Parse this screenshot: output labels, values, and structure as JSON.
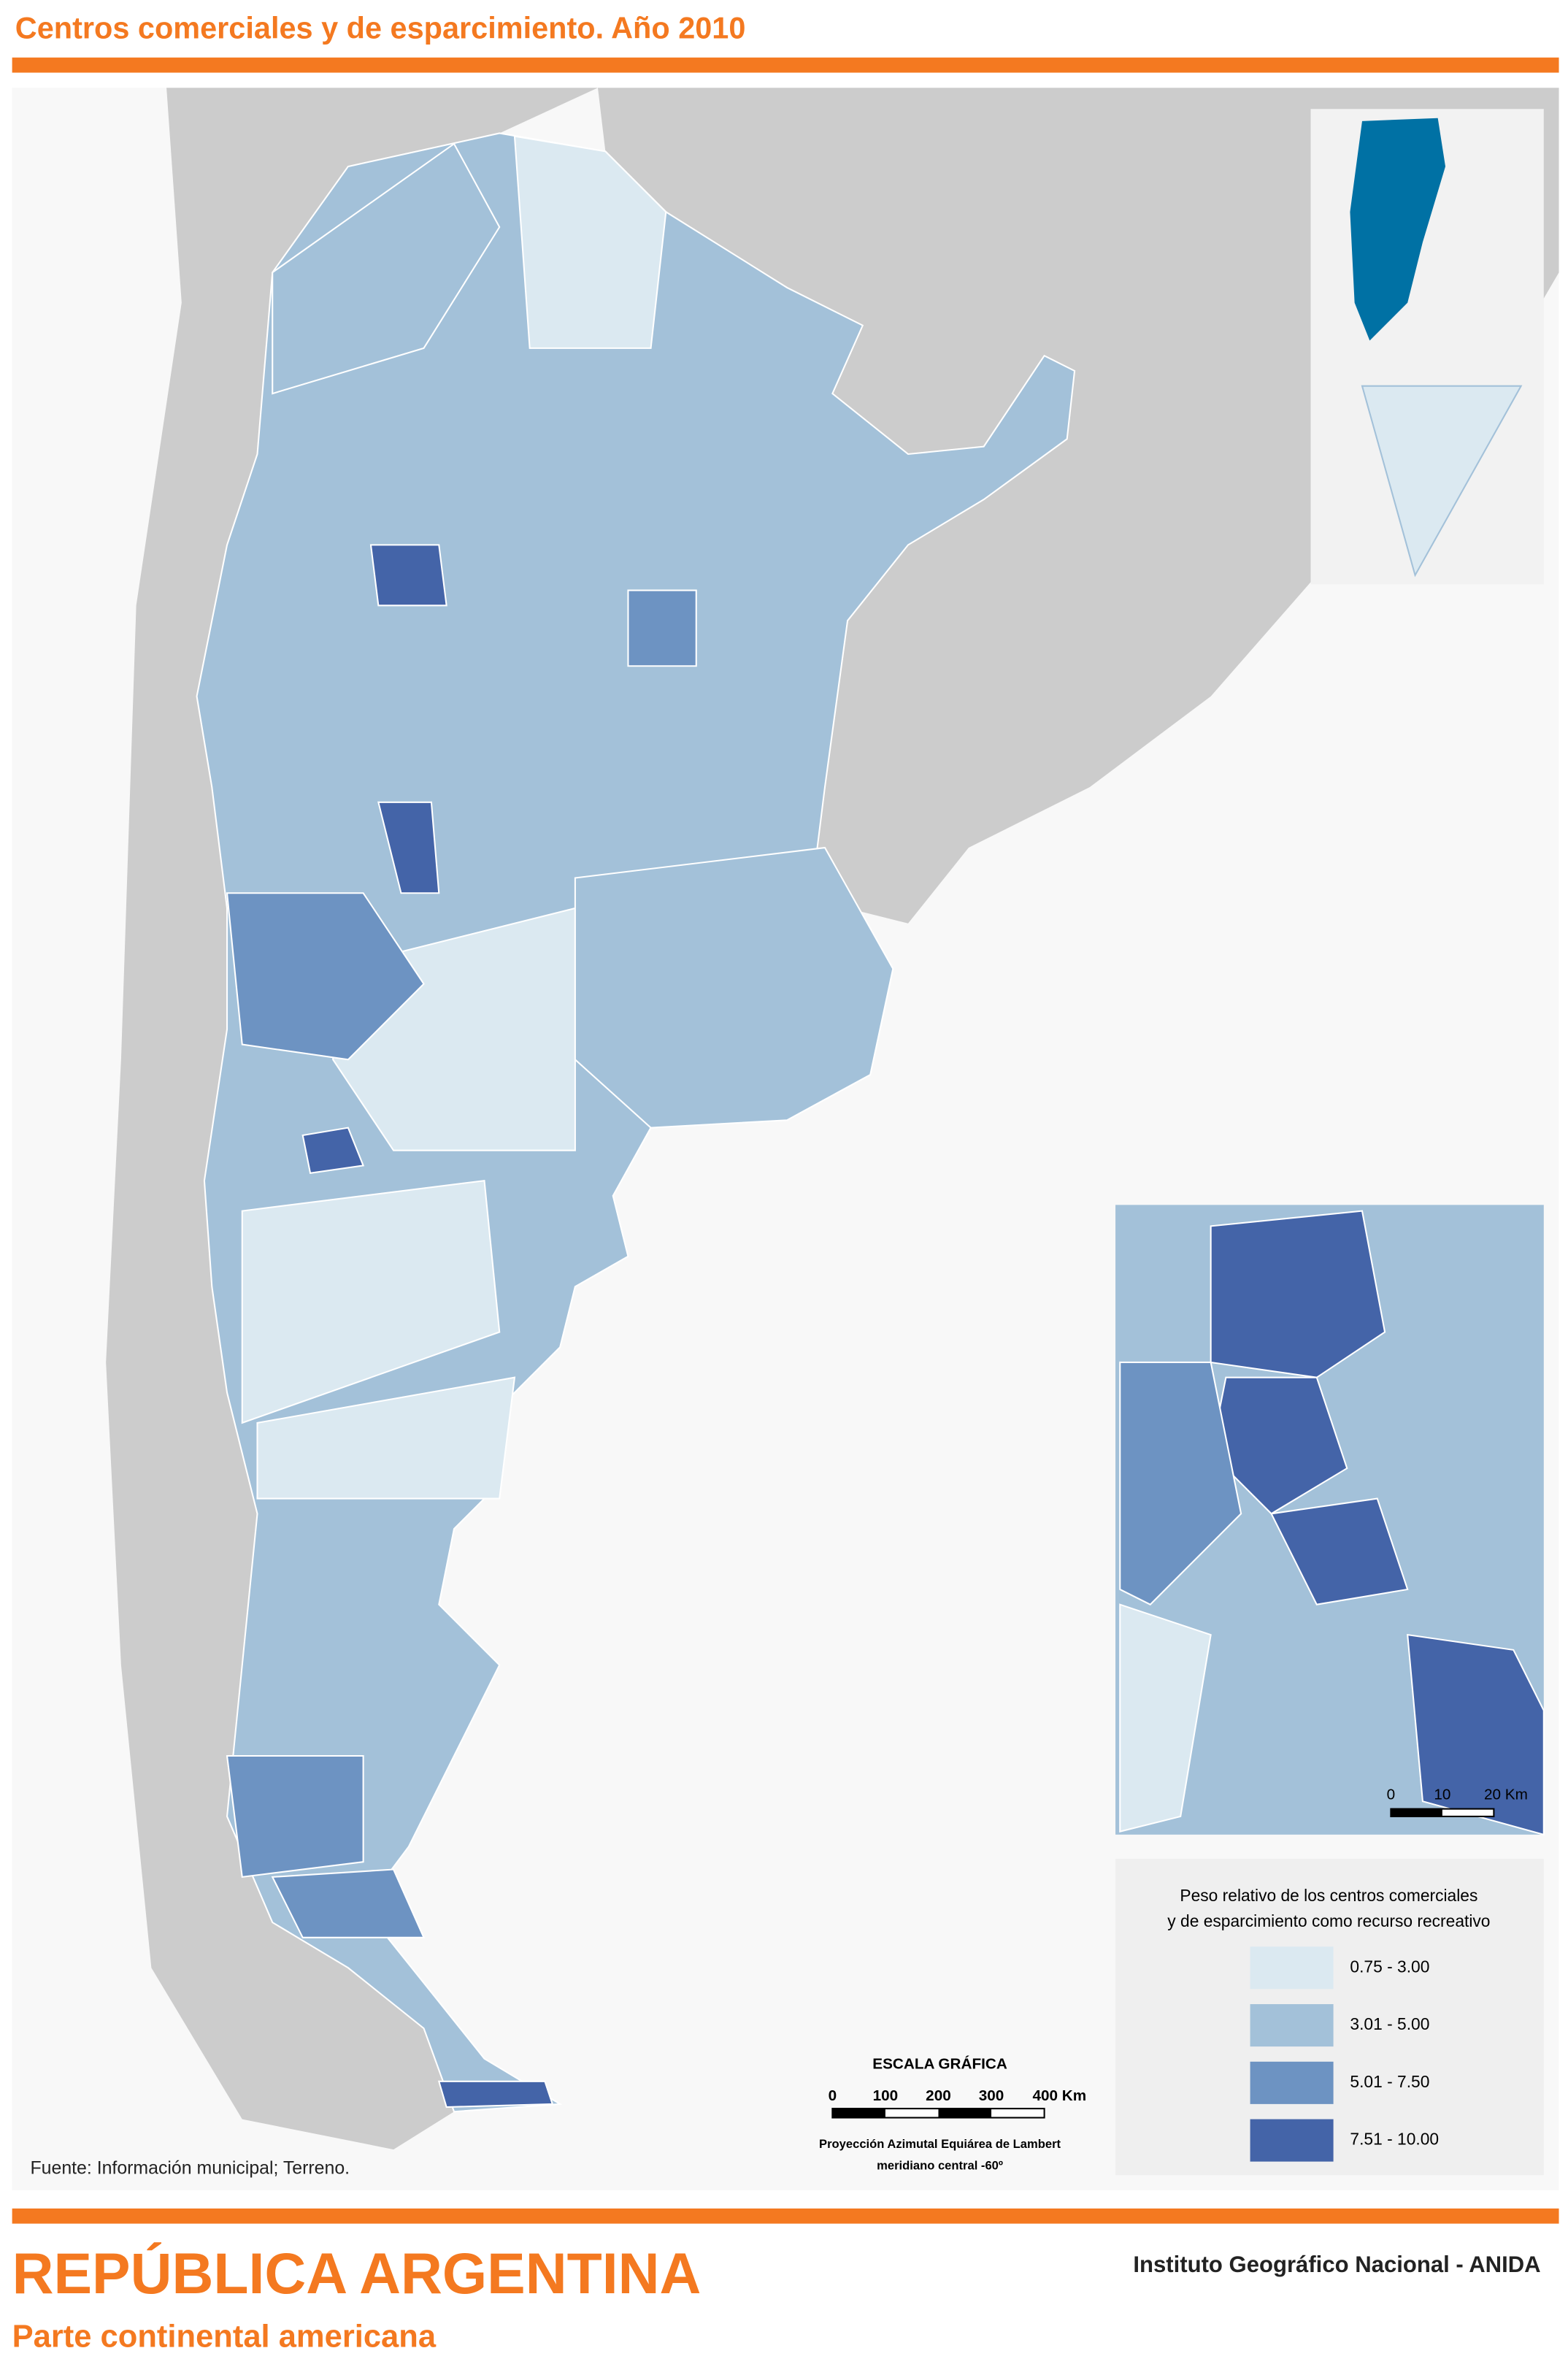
{
  "header": {
    "title": "Centros comerciales y de esparcimiento. Año 2010"
  },
  "legend": {
    "title": [
      "Peso relativo de los centros comerciales",
      "y de esparcimiento como recurso recreativo"
    ],
    "classes": [
      {
        "label": "0.75 - 3.00",
        "color": "#dbe9f1"
      },
      {
        "label": "3.01 - 5.00",
        "color": "#a3c1d9"
      },
      {
        "label": "5.01 - 7.50",
        "color": "#6d93c2"
      },
      {
        "label": "7.51 - 10.00",
        "color": "#4464a8"
      }
    ]
  },
  "scale": {
    "title": "ESCALA GRÁFICA",
    "ticks": [
      "0",
      "100",
      "200",
      "300",
      "400 Km"
    ],
    "projection": [
      "Proyección Azimutal Equiárea de Lambert",
      "meridiano central -60º"
    ]
  },
  "inset_scale": {
    "ticks": [
      "0",
      "10",
      "20 Km"
    ]
  },
  "source": "Fuente: Información municipal; Terreno.",
  "footer": {
    "title": "REPÚBLICA ARGENTINA",
    "subtitle": "Parte continental americana",
    "agency": "Instituto Geográfico Nacional - ANIDA"
  }
}
